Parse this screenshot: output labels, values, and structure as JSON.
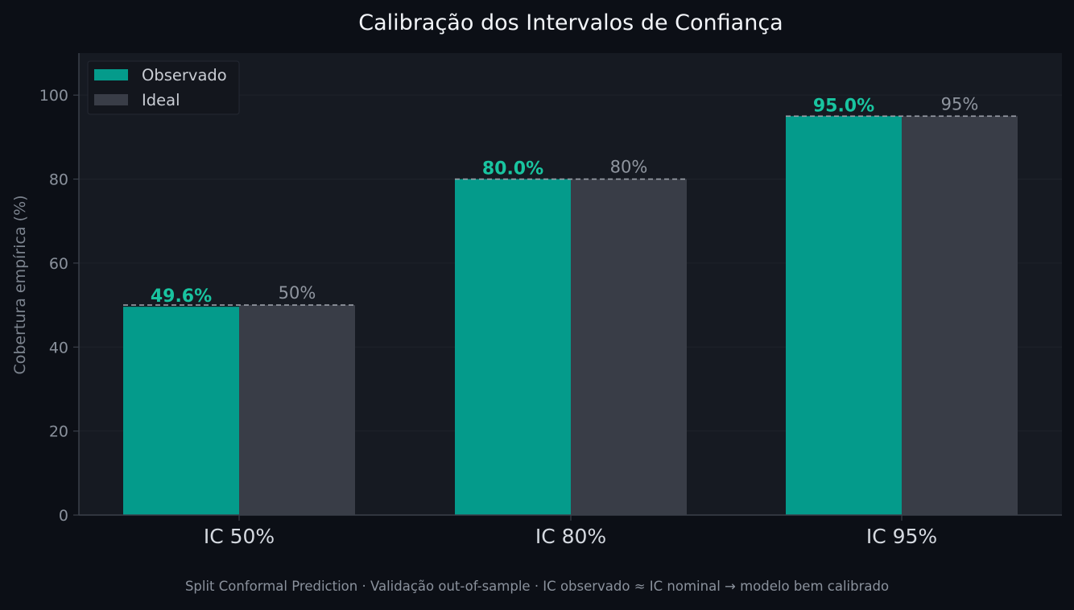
{
  "chart_data": {
    "type": "bar",
    "title": "Calibração dos Intervalos de Confiança",
    "ylabel": "Cobertura empírica (%)",
    "xlabel": "",
    "categories": [
      "IC 50%",
      "IC 80%",
      "IC 95%"
    ],
    "ylim": [
      0,
      110
    ],
    "yticks": [
      0,
      20,
      40,
      60,
      80,
      100
    ],
    "grid": true,
    "legend_position": "top-left",
    "series": [
      {
        "name": "Observado",
        "values": [
          49.6,
          80.0,
          95.0
        ],
        "labels": [
          "49.6%",
          "80.0%",
          "95.0%"
        ],
        "color": "#049b8b"
      },
      {
        "name": "Ideal",
        "values": [
          50,
          80,
          95
        ],
        "labels": [
          "50%",
          "80%",
          "95%"
        ],
        "color": "#393d47"
      }
    ],
    "footer": "Split Conformal Prediction · Validação out-of-sample · IC observado ≈ IC nominal → modelo bem calibrado"
  },
  "colors": {
    "background": "#0c0f16",
    "plot_background": "#161a22",
    "grid": "#1f232b",
    "axis": "#3b404a",
    "observed_label": "#19c4a0",
    "ideal_line": "#9a9fa8"
  }
}
